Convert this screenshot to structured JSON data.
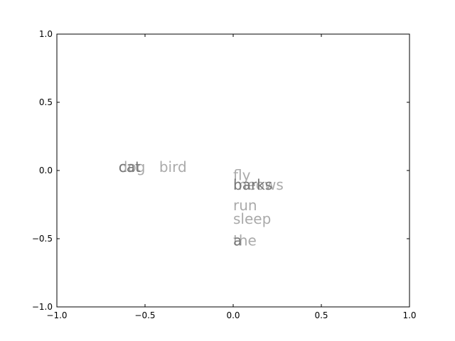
{
  "chart_data": {
    "type": "scatter",
    "title": "",
    "xlabel": "",
    "ylabel": "",
    "xlim": [
      -1.0,
      1.0
    ],
    "ylim": [
      -1.0,
      1.0
    ],
    "grid": false,
    "x_ticks": [
      {
        "value": -1.0,
        "label": "−1.0"
      },
      {
        "value": -0.5,
        "label": "−0.5"
      },
      {
        "value": 0.0,
        "label": "0.0"
      },
      {
        "value": 0.5,
        "label": "0.5"
      },
      {
        "value": 1.0,
        "label": "1.0"
      }
    ],
    "y_ticks": [
      {
        "value": 1.0,
        "label": "1.0"
      },
      {
        "value": 0.5,
        "label": "0.5"
      },
      {
        "value": 0.0,
        "label": "0.0"
      },
      {
        "value": -0.5,
        "label": "−0.5"
      },
      {
        "value": -1.0,
        "label": "−1.0"
      }
    ],
    "points": [
      {
        "label": "dog",
        "x": -0.65,
        "y": 0.0,
        "color": "#aaaaaa"
      },
      {
        "label": "cat",
        "x": -0.65,
        "y": 0.0,
        "color": "#777777"
      },
      {
        "label": "bird",
        "x": -0.42,
        "y": 0.0,
        "color": "#aaaaaa"
      },
      {
        "label": "fly",
        "x": 0.0,
        "y": -0.06,
        "color": "#aaaaaa"
      },
      {
        "label": "meows",
        "x": 0.0,
        "y": -0.13,
        "color": "#aaaaaa"
      },
      {
        "label": "barks",
        "x": 0.0,
        "y": -0.13,
        "color": "#777777"
      },
      {
        "label": "run",
        "x": 0.0,
        "y": -0.28,
        "color": "#aaaaaa"
      },
      {
        "label": "sleep",
        "x": 0.0,
        "y": -0.38,
        "color": "#aaaaaa"
      },
      {
        "label": "the",
        "x": 0.0,
        "y": -0.54,
        "color": "#aaaaaa"
      },
      {
        "label": "a",
        "x": 0.0,
        "y": -0.54,
        "color": "#777777"
      }
    ]
  }
}
